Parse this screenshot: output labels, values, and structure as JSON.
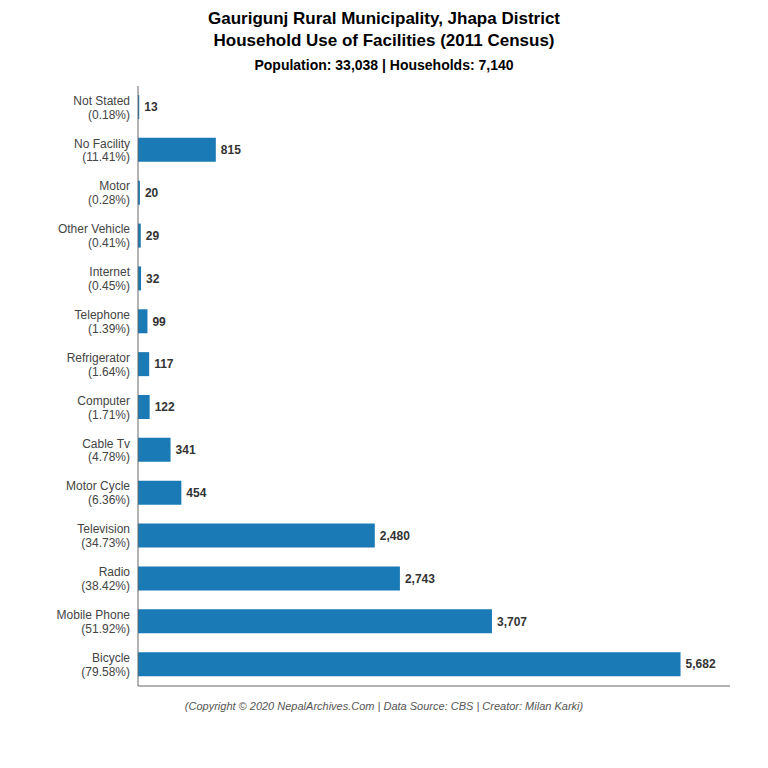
{
  "chart_data": {
    "type": "bar",
    "orientation": "horizontal",
    "title": "Gaurigunj Rural Municipality, Jhapa District\nHousehold Use of Facilities (2011 Census)",
    "subtitle": "Population: 33,038 | Households: 7,140",
    "annotations": [
      "(Copyright © 2020 NepalArchives.Com | Data Source: CBS | Creator: Milan Karki)"
    ],
    "categories": [
      "Bicycle\n(79.58%)",
      "Mobile Phone\n(51.92%)",
      "Radio\n(38.42%)",
      "Television\n(34.73%)",
      "Motor Cycle\n(6.36%)",
      "Cable Tv\n(4.78%)",
      "Computer\n(1.71%)",
      "Refrigerator\n(1.64%)",
      "Telephone\n(1.39%)",
      "Internet\n(0.45%)",
      "Other Vehicle\n(0.41%)",
      "Motor\n(0.28%)",
      "No Facility\n(11.41%)",
      "Not Stated\n(0.18%)"
    ],
    "values": [
      5682,
      3707,
      2743,
      2480,
      454,
      341,
      122,
      117,
      99,
      32,
      29,
      20,
      815,
      13
    ],
    "value_labels": [
      "5,682",
      "3,707",
      "2,743",
      "2,480",
      "454",
      "341",
      "122",
      "117",
      "99",
      "32",
      "29",
      "20",
      "815",
      "13"
    ],
    "data_labels": true,
    "color": "#1a7ab5",
    "xlim": [
      0,
      6200
    ],
    "grid": false,
    "tick_labels": "y"
  }
}
